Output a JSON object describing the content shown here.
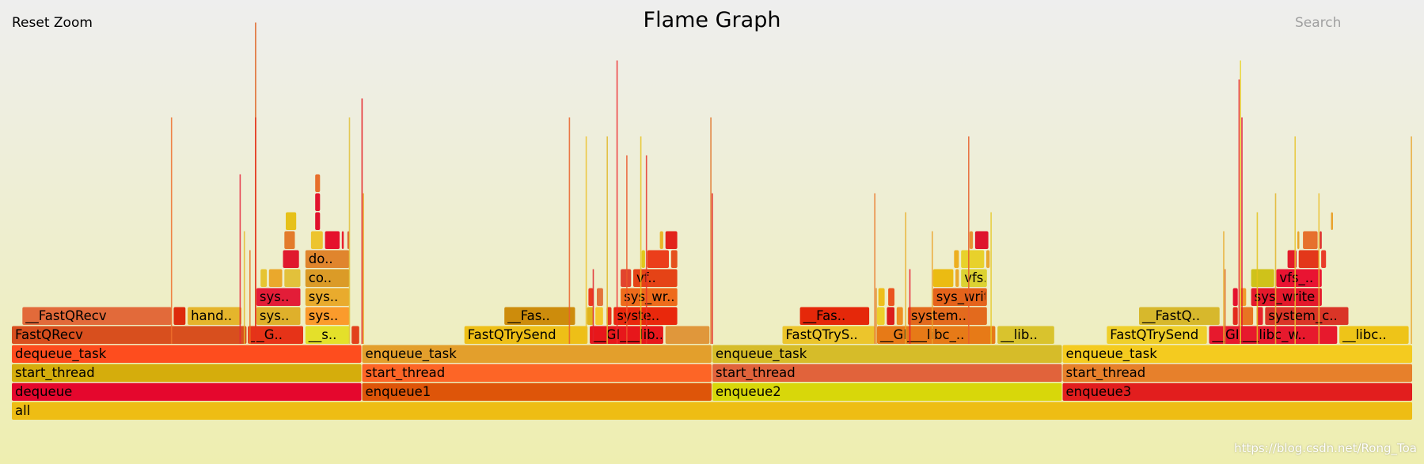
{
  "toolbar": {
    "reset_label": "Reset Zoom",
    "search_label": "Search"
  },
  "title": "Flame Graph",
  "watermark": "https://blog.csdn.net/Rong_Toa",
  "stack_depth_labels_note": "",
  "frames": [
    {
      "name": "all",
      "depth": 0,
      "start": 0.0,
      "end": 1.0,
      "color": "#eebd14"
    },
    {
      "name": "dequeue",
      "depth": 1,
      "start": 0.0,
      "end": 0.25,
      "color": "#e5072d"
    },
    {
      "name": "enqueue1",
      "depth": 1,
      "start": 0.25,
      "end": 0.5,
      "color": "#de5509"
    },
    {
      "name": "enqueue2",
      "depth": 1,
      "start": 0.5,
      "end": 0.75,
      "color": "#d8d70a"
    },
    {
      "name": "enqueue3",
      "depth": 1,
      "start": 0.75,
      "end": 1.0,
      "color": "#e21e1e"
    },
    {
      "name": "start_thread",
      "depth": 2,
      "start": 0.0,
      "end": 0.25,
      "color": "#d5ad0c"
    },
    {
      "name": "start_thread",
      "depth": 2,
      "start": 0.25,
      "end": 0.5,
      "color": "#fd6526"
    },
    {
      "name": "start_thread",
      "depth": 2,
      "start": 0.5,
      "end": 0.75,
      "color": "#e1633b"
    },
    {
      "name": "start_thread",
      "depth": 2,
      "start": 0.75,
      "end": 1.0,
      "color": "#e7802b"
    },
    {
      "name": "dequeue_task",
      "depth": 3,
      "start": 0.0,
      "end": 0.25,
      "color": "#fe4d1e"
    },
    {
      "name": "enqueue_task",
      "depth": 3,
      "start": 0.25,
      "end": 0.5,
      "color": "#e39f2c"
    },
    {
      "name": "enqueue_task",
      "depth": 3,
      "start": 0.5,
      "end": 0.75,
      "color": "#d6bc29"
    },
    {
      "name": "enqueue_task",
      "depth": 3,
      "start": 0.75,
      "end": 1.0,
      "color": "#f4cb1f"
    },
    {
      "name": "FastQRecv",
      "depth": 4,
      "start": 0.0,
      "end": 0.168,
      "color": "#d84f1e"
    },
    {
      "name": "__G..",
      "depth": 4,
      "start": 0.1685,
      "end": 0.2085,
      "color": "#e63318"
    },
    {
      "name": "__s..",
      "depth": 4,
      "start": 0.2095,
      "end": 0.2415,
      "color": "#e4e02a"
    },
    {
      "name": "",
      "depth": 4,
      "start": 0.2425,
      "end": 0.2485,
      "color": "#e2401b"
    },
    {
      "name": "FastQTrySend",
      "depth": 4,
      "start": 0.323,
      "end": 0.4115,
      "color": "#eebf17"
    },
    {
      "name": "__GI___lib..",
      "depth": 4,
      "start": 0.4125,
      "end": 0.4655,
      "color": "#e7171b"
    },
    {
      "name": "",
      "depth": 4,
      "start": 0.4665,
      "end": 0.4985,
      "color": "#e0973b"
    },
    {
      "name": "FastQTryS..",
      "depth": 4,
      "start": 0.55,
      "end": 0.6165,
      "color": "#ecc52c"
    },
    {
      "name": "__GI___libc_..",
      "depth": 4,
      "start": 0.6175,
      "end": 0.7025,
      "color": "#e77a17"
    },
    {
      "name": "__lib..",
      "depth": 4,
      "start": 0.7035,
      "end": 0.7445,
      "color": "#d9c32d"
    },
    {
      "name": "FastQTrySend",
      "depth": 4,
      "start": 0.7815,
      "end": 0.8535,
      "color": "#efcf2a"
    },
    {
      "name": "__GI___libc_w..",
      "depth": 4,
      "start": 0.8545,
      "end": 0.9465,
      "color": "#e7192d"
    },
    {
      "name": "__libc..",
      "depth": 4,
      "start": 0.9475,
      "end": 0.9975,
      "color": "#eec418"
    },
    {
      "name": "__FastQRecv",
      "depth": 5,
      "start": 0.0075,
      "end": 0.1145,
      "color": "#e26a3a"
    },
    {
      "name": "",
      "depth": 5,
      "start": 0.1155,
      "end": 0.1245,
      "color": "#dd2b0c"
    },
    {
      "name": "hand..",
      "depth": 5,
      "start": 0.1255,
      "end": 0.1645,
      "color": "#e5b52c"
    },
    {
      "name": "sys..",
      "depth": 5,
      "start": 0.1745,
      "end": 0.2065,
      "color": "#dfb02b"
    },
    {
      "name": "sys..",
      "depth": 5,
      "start": 0.2095,
      "end": 0.2415,
      "color": "#fb9b2c"
    },
    {
      "name": "__Fas..",
      "depth": 5,
      "start": 0.3515,
      "end": 0.4025,
      "color": "#cd8c0c"
    },
    {
      "name": "",
      "depth": 5,
      "start": 0.4105,
      "end": 0.4155,
      "color": "#e0b41b"
    },
    {
      "name": "",
      "depth": 5,
      "start": 0.4165,
      "end": 0.4225,
      "color": "#f5c82c"
    },
    {
      "name": "",
      "depth": 5,
      "start": 0.4245,
      "end": 0.4285,
      "color": "#e9361d"
    },
    {
      "name": "syste..",
      "depth": 5,
      "start": 0.4295,
      "end": 0.4755,
      "color": "#e9280c"
    },
    {
      "name": "__Fas..",
      "depth": 5,
      "start": 0.5625,
      "end": 0.6125,
      "color": "#e5280a"
    },
    {
      "name": "",
      "depth": 5,
      "start": 0.6175,
      "end": 0.6235,
      "color": "#edcf2a"
    },
    {
      "name": "",
      "depth": 5,
      "start": 0.6245,
      "end": 0.6305,
      "color": "#db1d1c"
    },
    {
      "name": "",
      "depth": 5,
      "start": 0.6315,
      "end": 0.6365,
      "color": "#ee8f22"
    },
    {
      "name": "system..",
      "depth": 5,
      "start": 0.6395,
      "end": 0.6965,
      "color": "#e36a1d"
    },
    {
      "name": "__FastQ..",
      "depth": 5,
      "start": 0.8045,
      "end": 0.8625,
      "color": "#d7b82c"
    },
    {
      "name": "",
      "depth": 5,
      "start": 0.8715,
      "end": 0.8755,
      "color": "#e32a1d"
    },
    {
      "name": "",
      "depth": 5,
      "start": 0.8765,
      "end": 0.8865,
      "color": "#e87422"
    },
    {
      "name": "",
      "depth": 5,
      "start": 0.8885,
      "end": 0.8935,
      "color": "#e6232b"
    },
    {
      "name": "system_c..",
      "depth": 5,
      "start": 0.8945,
      "end": 0.9545,
      "color": "#da3527"
    },
    {
      "name": "sys..",
      "depth": 6,
      "start": 0.1745,
      "end": 0.2065,
      "color": "#e31d38"
    },
    {
      "name": "sys..",
      "depth": 6,
      "start": 0.2095,
      "end": 0.2415,
      "color": "#e9ab2d"
    },
    {
      "name": "",
      "depth": 6,
      "start": 0.4115,
      "end": 0.4155,
      "color": "#ea3a1f"
    },
    {
      "name": "",
      "depth": 6,
      "start": 0.4175,
      "end": 0.4225,
      "color": "#e3733a"
    },
    {
      "name": "sys_wr..",
      "depth": 6,
      "start": 0.4345,
      "end": 0.4755,
      "color": "#ee6b1b"
    },
    {
      "name": "",
      "depth": 6,
      "start": 0.6185,
      "end": 0.6235,
      "color": "#edbf1b"
    },
    {
      "name": "",
      "depth": 6,
      "start": 0.6255,
      "end": 0.6305,
      "color": "#ea541f"
    },
    {
      "name": "sys_write",
      "depth": 6,
      "start": 0.6575,
      "end": 0.6965,
      "color": "#e5631b"
    },
    {
      "name": "",
      "depth": 6,
      "start": 0.8715,
      "end": 0.8755,
      "color": "#e5112d"
    },
    {
      "name": "",
      "depth": 6,
      "start": 0.8765,
      "end": 0.8815,
      "color": "#ef9b2b"
    },
    {
      "name": "sys_write",
      "depth": 6,
      "start": 0.8845,
      "end": 0.9355,
      "color": "#e4192c"
    },
    {
      "name": "",
      "depth": 7,
      "start": 0.1775,
      "end": 0.1825,
      "color": "#e6c431"
    },
    {
      "name": "",
      "depth": 7,
      "start": 0.1835,
      "end": 0.1935,
      "color": "#eaa82c"
    },
    {
      "name": "",
      "depth": 7,
      "start": 0.1945,
      "end": 0.2065,
      "color": "#e2c13b"
    },
    {
      "name": "co..",
      "depth": 7,
      "start": 0.2095,
      "end": 0.2415,
      "color": "#db9b27"
    },
    {
      "name": "",
      "depth": 7,
      "start": 0.4345,
      "end": 0.4425,
      "color": "#e2432d"
    },
    {
      "name": "vf..",
      "depth": 7,
      "start": 0.4435,
      "end": 0.4755,
      "color": "#e54316"
    },
    {
      "name": "",
      "depth": 7,
      "start": 0.6575,
      "end": 0.6725,
      "color": "#ebbb12"
    },
    {
      "name": "",
      "depth": 7,
      "start": 0.6735,
      "end": 0.6765,
      "color": "#eaa82a"
    },
    {
      "name": "vfs..",
      "depth": 7,
      "start": 0.6775,
      "end": 0.6965,
      "color": "#dcd232"
    },
    {
      "name": "",
      "depth": 7,
      "start": 0.8845,
      "end": 0.9015,
      "color": "#cfc21a"
    },
    {
      "name": "vfs_..",
      "depth": 7,
      "start": 0.9025,
      "end": 0.9355,
      "color": "#e91432"
    },
    {
      "name": "",
      "depth": 8,
      "start": 0.1935,
      "end": 0.2055,
      "color": "#e0182d"
    },
    {
      "name": "do..",
      "depth": 8,
      "start": 0.2095,
      "end": 0.2415,
      "color": "#e0852d"
    },
    {
      "name": "",
      "depth": 8,
      "start": 0.4495,
      "end": 0.4525,
      "color": "#e1c71b"
    },
    {
      "name": "",
      "depth": 8,
      "start": 0.4535,
      "end": 0.4695,
      "color": "#eb3e1b"
    },
    {
      "name": "",
      "depth": 8,
      "start": 0.4705,
      "end": 0.4755,
      "color": "#e5501e"
    },
    {
      "name": "",
      "depth": 8,
      "start": 0.6725,
      "end": 0.6765,
      "color": "#edaf1f"
    },
    {
      "name": "",
      "depth": 8,
      "start": 0.6775,
      "end": 0.6945,
      "color": "#e8d12b"
    },
    {
      "name": "",
      "depth": 8,
      "start": 0.6955,
      "end": 0.6985,
      "color": "#e9a72c"
    },
    {
      "name": "",
      "depth": 8,
      "start": 0.9105,
      "end": 0.9175,
      "color": "#e31b2a"
    },
    {
      "name": "",
      "depth": 8,
      "start": 0.9185,
      "end": 0.9335,
      "color": "#e3371a"
    },
    {
      "name": "",
      "depth": 8,
      "start": 0.9345,
      "end": 0.9385,
      "color": "#e93b2a"
    },
    {
      "name": "",
      "depth": 9,
      "start": 0.1945,
      "end": 0.2025,
      "color": "#e37b2b"
    },
    {
      "name": "",
      "depth": 9,
      "start": 0.2135,
      "end": 0.2225,
      "color": "#edc42f"
    },
    {
      "name": "",
      "depth": 9,
      "start": 0.2235,
      "end": 0.2345,
      "color": "#e5112c"
    },
    {
      "name": "",
      "depth": 9,
      "start": 0.2355,
      "end": 0.2375,
      "color": "#ea1e2d"
    },
    {
      "name": "",
      "depth": 9,
      "start": 0.2395,
      "end": 0.2415,
      "color": "#de602d"
    },
    {
      "name": "",
      "depth": 9,
      "start": 0.4625,
      "end": 0.4655,
      "color": "#ebb627"
    },
    {
      "name": "",
      "depth": 9,
      "start": 0.4665,
      "end": 0.4755,
      "color": "#e2231b"
    },
    {
      "name": "",
      "depth": 9,
      "start": 0.6835,
      "end": 0.6865,
      "color": "#e99231"
    },
    {
      "name": "",
      "depth": 9,
      "start": 0.6875,
      "end": 0.6975,
      "color": "#de132d"
    },
    {
      "name": "",
      "depth": 9,
      "start": 0.9175,
      "end": 0.9195,
      "color": "#e8a52c"
    },
    {
      "name": "",
      "depth": 9,
      "start": 0.9215,
      "end": 0.9325,
      "color": "#e6702d"
    },
    {
      "name": "",
      "depth": 9,
      "start": 0.9335,
      "end": 0.9355,
      "color": "#de2b2b"
    },
    {
      "name": "",
      "depth": 10,
      "start": 0.1955,
      "end": 0.2035,
      "color": "#e6c11a"
    },
    {
      "name": "",
      "depth": 10,
      "start": 0.2165,
      "end": 0.2205,
      "color": "#e0102c"
    },
    {
      "name": "",
      "depth": 10,
      "start": 0.9415,
      "end": 0.9435,
      "color": "#e9a22d"
    },
    {
      "name": "",
      "depth": 11,
      "start": 0.2165,
      "end": 0.2205,
      "color": "#e2132d"
    },
    {
      "name": "",
      "depth": 12,
      "start": 0.2165,
      "end": 0.2205,
      "color": "#e76f2b"
    }
  ],
  "slivers": [
    {
      "pos": 0.1135,
      "top_depth": 15,
      "color": "#ee6f2c"
    },
    {
      "pos": 0.1625,
      "top_depth": 12,
      "color": "#e5253b"
    },
    {
      "pos": 0.1655,
      "top_depth": 9,
      "color": "#e4b82c"
    },
    {
      "pos": 0.1695,
      "top_depth": 8,
      "color": "#e6731f"
    },
    {
      "pos": 0.1735,
      "top_depth": 20,
      "color": "#dd5c19"
    },
    {
      "pos": 0.1735,
      "top_depth": 15,
      "color": "#e42b1c"
    },
    {
      "pos": 0.2405,
      "top_depth": 15,
      "color": "#e1c13c"
    },
    {
      "pos": 0.2495,
      "top_depth": 16,
      "color": "#e4121a"
    },
    {
      "pos": 0.2505,
      "top_depth": 11,
      "color": "#e8a927"
    },
    {
      "pos": 0.3975,
      "top_depth": 15,
      "color": "#e9622a"
    },
    {
      "pos": 0.4095,
      "top_depth": 14,
      "color": "#ecc129"
    },
    {
      "pos": 0.4145,
      "top_depth": 7,
      "color": "#e0212a"
    },
    {
      "pos": 0.4245,
      "top_depth": 14,
      "color": "#e0b82c"
    },
    {
      "pos": 0.4315,
      "top_depth": 18,
      "color": "#ee2c2f"
    },
    {
      "pos": 0.4385,
      "top_depth": 13,
      "color": "#ea572b"
    },
    {
      "pos": 0.4485,
      "top_depth": 14,
      "color": "#e6c21f"
    },
    {
      "pos": 0.4525,
      "top_depth": 13,
      "color": "#e6342b"
    },
    {
      "pos": 0.4985,
      "top_depth": 15,
      "color": "#e0742a"
    },
    {
      "pos": 0.4995,
      "top_depth": 11,
      "color": "#e5211d"
    },
    {
      "pos": 0.6155,
      "top_depth": 11,
      "color": "#ea7a2d"
    },
    {
      "pos": 0.6165,
      "top_depth": 6,
      "color": "#e0912c"
    },
    {
      "pos": 0.6375,
      "top_depth": 10,
      "color": "#e8ae2d"
    },
    {
      "pos": 0.6405,
      "top_depth": 7,
      "color": "#e6122c"
    },
    {
      "pos": 0.6565,
      "top_depth": 9,
      "color": "#eba22c"
    },
    {
      "pos": 0.6825,
      "top_depth": 14,
      "color": "#e65f2c"
    },
    {
      "pos": 0.6985,
      "top_depth": 10,
      "color": "#e6c92c"
    },
    {
      "pos": 0.8645,
      "top_depth": 9,
      "color": "#e8ac2d"
    },
    {
      "pos": 0.8655,
      "top_depth": 7,
      "color": "#e06a2a"
    },
    {
      "pos": 0.8765,
      "top_depth": 18,
      "color": "#e9d52a"
    },
    {
      "pos": 0.8755,
      "top_depth": 17,
      "color": "#e7222d"
    },
    {
      "pos": 0.8775,
      "top_depth": 15,
      "color": "#e3122d"
    },
    {
      "pos": 0.8885,
      "top_depth": 10,
      "color": "#e4c31c"
    },
    {
      "pos": 0.9015,
      "top_depth": 11,
      "color": "#e3b42c"
    },
    {
      "pos": 0.9155,
      "top_depth": 14,
      "color": "#e8c42e"
    },
    {
      "pos": 0.9325,
      "top_depth": 11,
      "color": "#eac02c"
    },
    {
      "pos": 0.9985,
      "top_depth": 14,
      "color": "#e8a52d"
    }
  ]
}
